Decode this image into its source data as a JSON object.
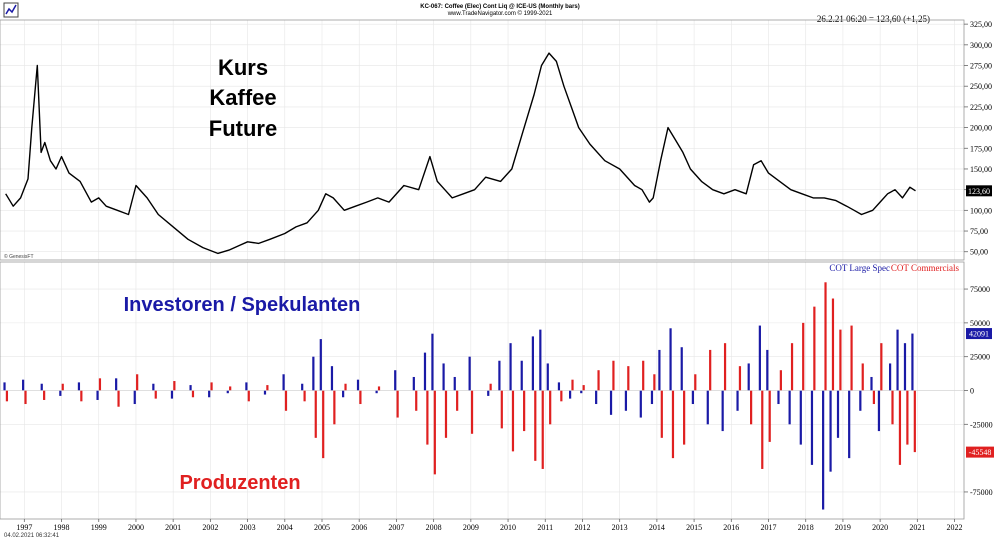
{
  "header": {
    "line1": "KC-067: Coffee (Elec) Cont Liq @ ICE-US  (Monthly bars)",
    "line2": "www.TradeNavigator.com © 1999-2021",
    "readout": "26.2.21 06:20 = 123,60 (+1,25)"
  },
  "footer": {
    "timestamp": "04.02.2021 06:32:41",
    "genesis": "© GenesisFT"
  },
  "annotations": {
    "price_line1": "Kurs",
    "price_line2": "Kaffee",
    "price_line3": "Future",
    "investors": "Investoren / Spekulanten",
    "producers": "Produzenten"
  },
  "colors": {
    "price": "#000000",
    "large_spec": "#1a1aa6",
    "commercials": "#e02020",
    "grid": "#e6e6e6"
  },
  "chart_data": [
    {
      "type": "line",
      "series": [
        {
          "name": "Coffee (Elec) Cont Liq @ ICE-US",
          "x": [
            1996.5,
            1996.7,
            1996.9,
            1997.1,
            1997.2,
            1997.35,
            1997.45,
            1997.55,
            1997.7,
            1997.85,
            1998.0,
            1998.2,
            1998.5,
            1998.8,
            1999.0,
            1999.2,
            1999.5,
            1999.8,
            2000.0,
            2000.3,
            2000.6,
            2001.0,
            2001.4,
            2001.8,
            2002.2,
            2002.5,
            2002.8,
            2003.0,
            2003.3,
            2003.6,
            2004.0,
            2004.3,
            2004.6,
            2004.9,
            2005.1,
            2005.3,
            2005.6,
            2005.9,
            2006.2,
            2006.5,
            2006.8,
            2007.2,
            2007.6,
            2007.9,
            2008.1,
            2008.3,
            2008.5,
            2008.8,
            2009.1,
            2009.4,
            2009.8,
            2010.1,
            2010.4,
            2010.7,
            2010.9,
            2011.1,
            2011.3,
            2011.5,
            2011.7,
            2011.9,
            2012.2,
            2012.6,
            2013.0,
            2013.4,
            2013.6,
            2013.8,
            2013.9,
            2014.1,
            2014.3,
            2014.5,
            2014.7,
            2014.9,
            2015.2,
            2015.5,
            2015.8,
            2016.1,
            2016.4,
            2016.6,
            2016.8,
            2017.0,
            2017.3,
            2017.6,
            2017.9,
            2018.2,
            2018.5,
            2018.8,
            2019.1,
            2019.3,
            2019.5,
            2019.8,
            2020.0,
            2020.2,
            2020.4,
            2020.6,
            2020.8,
            2020.95
          ],
          "values": [
            120,
            105,
            115,
            138,
            200,
            275,
            170,
            182,
            160,
            150,
            165,
            145,
            135,
            110,
            115,
            105,
            100,
            95,
            130,
            115,
            95,
            80,
            65,
            55,
            48,
            52,
            58,
            62,
            60,
            65,
            72,
            80,
            85,
            100,
            120,
            115,
            100,
            105,
            110,
            115,
            110,
            130,
            125,
            165,
            135,
            125,
            115,
            120,
            125,
            140,
            135,
            150,
            195,
            240,
            275,
            290,
            280,
            250,
            225,
            200,
            180,
            160,
            150,
            130,
            125,
            110,
            115,
            160,
            200,
            185,
            170,
            150,
            135,
            125,
            120,
            125,
            120,
            155,
            160,
            145,
            135,
            125,
            120,
            115,
            115,
            112,
            105,
            100,
            95,
            100,
            110,
            120,
            125,
            115,
            128,
            123.6
          ],
          "last_label": "123,60"
        }
      ],
      "ylim": [
        40,
        330
      ],
      "y_ticks": [
        "50,00",
        "75,00",
        "100,00",
        "125,00",
        "150,00",
        "175,00",
        "200,00",
        "225,00",
        "250,00",
        "275,00",
        "300,00",
        "325,00"
      ],
      "y_tick_values": [
        50,
        75,
        100,
        125,
        150,
        175,
        200,
        225,
        250,
        275,
        300,
        325
      ]
    },
    {
      "type": "bar",
      "legend": [
        "COT Large Spec",
        "COT Commercials"
      ],
      "ylim": [
        -95000,
        95000
      ],
      "y_ticks": [
        "-75000",
        "-25000",
        "0",
        "25000",
        "50000",
        "75000"
      ],
      "y_tick_values": [
        -75000,
        -25000,
        0,
        25000,
        50000,
        75000
      ],
      "last_values": [
        "42091",
        "-45548"
      ],
      "series": [
        {
          "name": "COT Large Spec",
          "x": [
            1996.5,
            1997.0,
            1997.5,
            1998.0,
            1998.5,
            1999.0,
            1999.5,
            2000.0,
            2000.5,
            2001.0,
            2001.5,
            2002.0,
            2002.5,
            2003.0,
            2003.5,
            2004.0,
            2004.5,
            2004.8,
            2005.0,
            2005.3,
            2005.6,
            2006.0,
            2006.5,
            2007.0,
            2007.5,
            2007.8,
            2008.0,
            2008.3,
            2008.6,
            2009.0,
            2009.5,
            2009.8,
            2010.1,
            2010.4,
            2010.7,
            2010.9,
            2011.1,
            2011.4,
            2011.7,
            2012.0,
            2012.4,
            2012.8,
            2013.2,
            2013.6,
            2013.9,
            2014.1,
            2014.4,
            2014.7,
            2015.0,
            2015.4,
            2015.8,
            2016.2,
            2016.5,
            2016.8,
            2017.0,
            2017.3,
            2017.6,
            2017.9,
            2018.2,
            2018.5,
            2018.7,
            2018.9,
            2019.2,
            2019.5,
            2019.8,
            2020.0,
            2020.3,
            2020.5,
            2020.7,
            2020.9
          ],
          "values": [
            6000,
            8000,
            5000,
            -4000,
            6000,
            -7000,
            9000,
            -10000,
            5000,
            -6000,
            4000,
            -5000,
            -2000,
            6000,
            -3000,
            12000,
            5000,
            25000,
            38000,
            18000,
            -5000,
            8000,
            -2000,
            15000,
            10000,
            28000,
            42000,
            20000,
            10000,
            25000,
            -4000,
            22000,
            35000,
            22000,
            40000,
            45000,
            20000,
            6000,
            -6000,
            -2000,
            -10000,
            -18000,
            -15000,
            -20000,
            -10000,
            30000,
            46000,
            32000,
            -10000,
            -25000,
            -30000,
            -15000,
            20000,
            48000,
            30000,
            -10000,
            -25000,
            -40000,
            -55000,
            -88000,
            -60000,
            -35000,
            -50000,
            -15000,
            10000,
            -30000,
            20000,
            45000,
            35000,
            42091
          ]
        },
        {
          "name": "COT Commercials",
          "x": [
            1996.5,
            1997.0,
            1997.5,
            1998.0,
            1998.5,
            1999.0,
            1999.5,
            2000.0,
            2000.5,
            2001.0,
            2001.5,
            2002.0,
            2002.5,
            2003.0,
            2003.5,
            2004.0,
            2004.5,
            2004.8,
            2005.0,
            2005.3,
            2005.6,
            2006.0,
            2006.5,
            2007.0,
            2007.5,
            2007.8,
            2008.0,
            2008.3,
            2008.6,
            2009.0,
            2009.5,
            2009.8,
            2010.1,
            2010.4,
            2010.7,
            2010.9,
            2011.1,
            2011.4,
            2011.7,
            2012.0,
            2012.4,
            2012.8,
            2013.2,
            2013.6,
            2013.9,
            2014.1,
            2014.4,
            2014.7,
            2015.0,
            2015.4,
            2015.8,
            2016.2,
            2016.5,
            2016.8,
            2017.0,
            2017.3,
            2017.6,
            2017.9,
            2018.2,
            2018.5,
            2018.7,
            2018.9,
            2019.2,
            2019.5,
            2019.8,
            2020.0,
            2020.3,
            2020.5,
            2020.7,
            2020.9
          ],
          "values": [
            -8000,
            -10000,
            -7000,
            5000,
            -8000,
            9000,
            -12000,
            12000,
            -6000,
            7000,
            -5000,
            6000,
            3000,
            -8000,
            4000,
            -15000,
            -8000,
            -35000,
            -50000,
            -25000,
            5000,
            -10000,
            3000,
            -20000,
            -15000,
            -40000,
            -62000,
            -35000,
            -15000,
            -32000,
            5000,
            -28000,
            -45000,
            -30000,
            -52000,
            -58000,
            -25000,
            -8000,
            8000,
            4000,
            15000,
            22000,
            18000,
            22000,
            12000,
            -35000,
            -50000,
            -40000,
            12000,
            30000,
            35000,
            18000,
            -25000,
            -58000,
            -38000,
            15000,
            35000,
            50000,
            62000,
            80000,
            68000,
            45000,
            48000,
            20000,
            -10000,
            35000,
            -25000,
            -55000,
            -40000,
            -45548
          ]
        }
      ]
    }
  ],
  "x_axis": {
    "labels": [
      "1997",
      "1998",
      "1999",
      "2000",
      "2001",
      "2002",
      "2003",
      "2004",
      "2005",
      "2006",
      "2007",
      "2008",
      "2009",
      "2010",
      "2011",
      "2012",
      "2013",
      "2014",
      "2015",
      "2016",
      "2017",
      "2018",
      "2019",
      "2020",
      "2021",
      "2022"
    ],
    "values": [
      1997,
      1998,
      1999,
      2000,
      2001,
      2002,
      2003,
      2004,
      2005,
      2006,
      2007,
      2008,
      2009,
      2010,
      2011,
      2012,
      2013,
      2014,
      2015,
      2016,
      2017,
      2018,
      2019,
      2020,
      2021,
      2022
    ],
    "range": [
      1996.4,
      2022.2
    ]
  }
}
